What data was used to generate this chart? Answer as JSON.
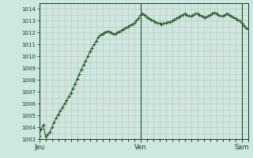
{
  "title": "",
  "xlabel": "",
  "ylabel": "",
  "bg_color": "#cce8e0",
  "plot_bg_color": "#cce8e0",
  "line_color": "#2d5a2d",
  "marker_color": "#2d5a2d",
  "grid_major_color": "#b8c8c0",
  "grid_minor_color": "#d0b8b8",
  "tick_label_color": "#1a3a1a",
  "axis_color": "#1a3a1a",
  "ylim": [
    1003,
    1014.5
  ],
  "yticks": [
    1003,
    1004,
    1005,
    1006,
    1007,
    1008,
    1009,
    1010,
    1011,
    1012,
    1013,
    1014
  ],
  "xtick_positions": [
    0,
    48,
    96
  ],
  "xtick_labels": [
    "Jeu",
    "Ven",
    "Sam"
  ],
  "values": [
    1003.3,
    1003.9,
    1004.2,
    1003.2,
    1003.4,
    1003.6,
    1004.0,
    1004.4,
    1004.8,
    1005.1,
    1005.4,
    1005.7,
    1006.0,
    1006.3,
    1006.6,
    1006.9,
    1007.3,
    1007.7,
    1008.1,
    1008.5,
    1008.9,
    1009.3,
    1009.6,
    1010.0,
    1010.4,
    1010.7,
    1011.0,
    1011.3,
    1011.6,
    1011.8,
    1011.9,
    1012.0,
    1012.1,
    1012.1,
    1012.0,
    1011.9,
    1011.9,
    1012.0,
    1012.1,
    1012.2,
    1012.3,
    1012.4,
    1012.5,
    1012.6,
    1012.7,
    1012.8,
    1013.0,
    1013.2,
    1013.5,
    1013.6,
    1013.5,
    1013.3,
    1013.2,
    1013.1,
    1013.0,
    1012.9,
    1012.8,
    1012.8,
    1012.7,
    1012.8,
    1012.8,
    1012.9,
    1012.9,
    1013.0,
    1013.1,
    1013.2,
    1013.3,
    1013.4,
    1013.5,
    1013.6,
    1013.5,
    1013.4,
    1013.4,
    1013.5,
    1013.6,
    1013.6,
    1013.5,
    1013.4,
    1013.3,
    1013.3,
    1013.4,
    1013.5,
    1013.6,
    1013.7,
    1013.6,
    1013.5,
    1013.4,
    1013.4,
    1013.5,
    1013.6,
    1013.5,
    1013.4,
    1013.3,
    1013.2,
    1013.1,
    1013.0,
    1012.8,
    1012.6,
    1012.4,
    1012.3
  ]
}
